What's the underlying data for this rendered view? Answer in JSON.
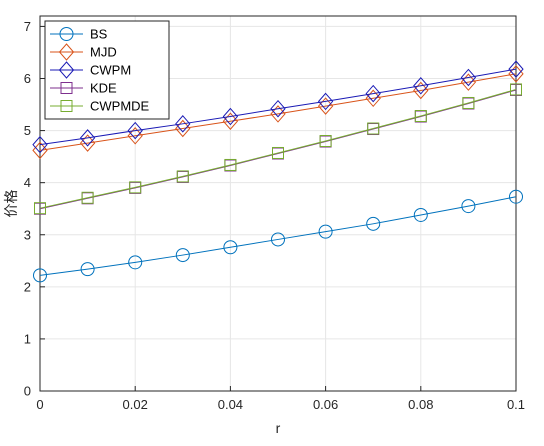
{
  "chart_data": {
    "type": "line",
    "title": "",
    "xlabel": "r",
    "ylabel": "价格",
    "xlim": [
      0,
      0.1
    ],
    "ylim": [
      0,
      7.2
    ],
    "xticks": [
      0,
      0.02,
      0.04,
      0.06,
      0.08,
      0.1
    ],
    "xtick_labels": [
      "0",
      "0.02",
      "0.04",
      "0.06",
      "0.08",
      "0.1"
    ],
    "yticks": [
      0,
      1,
      2,
      3,
      4,
      5,
      6,
      7
    ],
    "ytick_labels": [
      "0",
      "1",
      "2",
      "3",
      "4",
      "5",
      "6",
      "7"
    ],
    "grid": true,
    "legend_position": "top-left",
    "x": [
      0,
      0.01,
      0.02,
      0.03,
      0.04,
      0.05,
      0.06,
      0.07,
      0.08,
      0.09,
      0.1
    ],
    "series": [
      {
        "name": "BS",
        "color": "#0072BD",
        "marker": "circle",
        "values": [
          2.22,
          2.34,
          2.47,
          2.61,
          2.76,
          2.91,
          3.06,
          3.21,
          3.38,
          3.55,
          3.73
        ]
      },
      {
        "name": "MJD",
        "color": "#D95319",
        "marker": "diamond",
        "values": [
          4.62,
          4.76,
          4.9,
          5.04,
          5.18,
          5.32,
          5.47,
          5.62,
          5.77,
          5.93,
          6.09
        ]
      },
      {
        "name": "CWPM",
        "color": "#1A1AB5",
        "marker": "diamond",
        "values": [
          4.73,
          4.86,
          5.0,
          5.13,
          5.27,
          5.42,
          5.56,
          5.71,
          5.86,
          6.02,
          6.18
        ]
      },
      {
        "name": "KDE",
        "color": "#7E2F8E",
        "marker": "square",
        "values": [
          3.5,
          3.7,
          3.9,
          4.11,
          4.33,
          4.56,
          4.79,
          5.03,
          5.27,
          5.52,
          5.78
        ]
      },
      {
        "name": "CWPMDE",
        "color": "#77AC30",
        "marker": "square",
        "values": [
          3.51,
          3.71,
          3.91,
          4.12,
          4.34,
          4.57,
          4.8,
          5.04,
          5.28,
          5.53,
          5.79
        ]
      }
    ]
  }
}
